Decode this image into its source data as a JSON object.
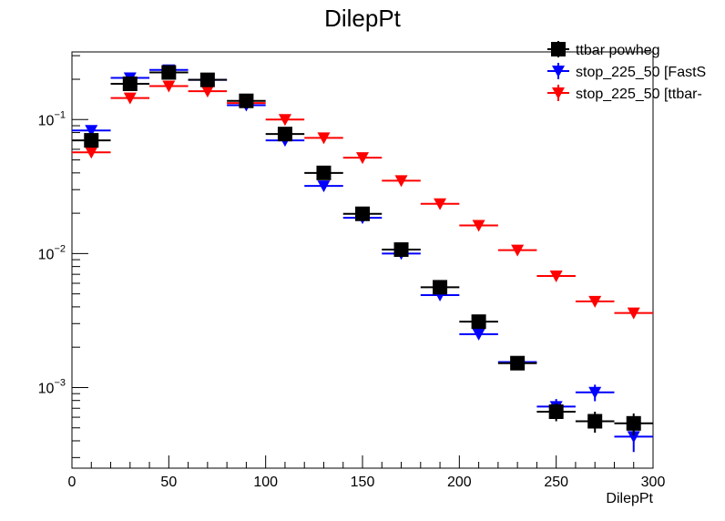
{
  "chart_data": {
    "type": "scatter",
    "title": "DilepPt",
    "xlabel": "DilepPt",
    "ylabel": "",
    "xlim": [
      0,
      300
    ],
    "ylim": [
      0.00025,
      0.32
    ],
    "y_scale": "log",
    "bin_width": 20,
    "x_ticks": [
      0,
      50,
      100,
      150,
      200,
      250,
      300
    ],
    "y_tick_labels": [
      {
        "value": 0.001,
        "base": "10",
        "exp": "−3"
      },
      {
        "value": 0.01,
        "base": "10",
        "exp": "−2"
      },
      {
        "value": 0.1,
        "base": "10",
        "exp": "−1"
      }
    ],
    "grid": false,
    "legend_position": "top-right",
    "series": [
      {
        "name": "stop_225_50 [ttbar-",
        "color": "#ff0000",
        "marker": "triangle-down",
        "x": [
          10,
          30,
          50,
          70,
          90,
          110,
          130,
          150,
          170,
          190,
          210,
          230,
          250,
          270,
          290
        ],
        "y": [
          0.057,
          0.145,
          0.178,
          0.163,
          0.133,
          0.1,
          0.073,
          0.052,
          0.035,
          0.0235,
          0.0162,
          0.0106,
          0.0068,
          0.0044,
          0.0036
        ],
        "yerr": [
          0.002,
          0.003,
          0.003,
          0.003,
          0.003,
          0.002,
          0.002,
          0.0015,
          0.001,
          0.0006,
          0.0004,
          0.0003,
          0.0002,
          0.00015,
          0.00012
        ]
      },
      {
        "name": "stop_225_50 [FastS",
        "color": "#0000ff",
        "marker": "triangle-down",
        "x": [
          10,
          30,
          50,
          70,
          90,
          110,
          130,
          150,
          170,
          190,
          210,
          230,
          250,
          270,
          290
        ],
        "y": [
          0.083,
          0.205,
          0.235,
          0.198,
          0.128,
          0.07,
          0.032,
          0.0185,
          0.01,
          0.0049,
          0.0025,
          0.00155,
          0.00072,
          0.00092,
          0.00043
        ],
        "yerr": [
          0.004,
          0.006,
          0.006,
          0.006,
          0.004,
          0.003,
          0.0015,
          0.0009,
          0.0005,
          0.0003,
          0.0002,
          0.00012,
          0.0001,
          0.00013,
          0.0001
        ]
      },
      {
        "name": "ttbar powheg",
        "color": "#000000",
        "marker": "square",
        "x": [
          10,
          30,
          50,
          70,
          90,
          110,
          130,
          150,
          170,
          190,
          210,
          230,
          250,
          270,
          290
        ],
        "y": [
          0.07,
          0.185,
          0.225,
          0.198,
          0.138,
          0.078,
          0.04,
          0.0198,
          0.0107,
          0.0056,
          0.0031,
          0.00152,
          0.00066,
          0.00056,
          0.00054
        ],
        "yerr": [
          0.003,
          0.005,
          0.005,
          0.005,
          0.004,
          0.003,
          0.002,
          0.001,
          0.0006,
          0.0004,
          0.0003,
          0.0001,
          0.0001,
          0.0001,
          0.0001
        ]
      }
    ]
  }
}
